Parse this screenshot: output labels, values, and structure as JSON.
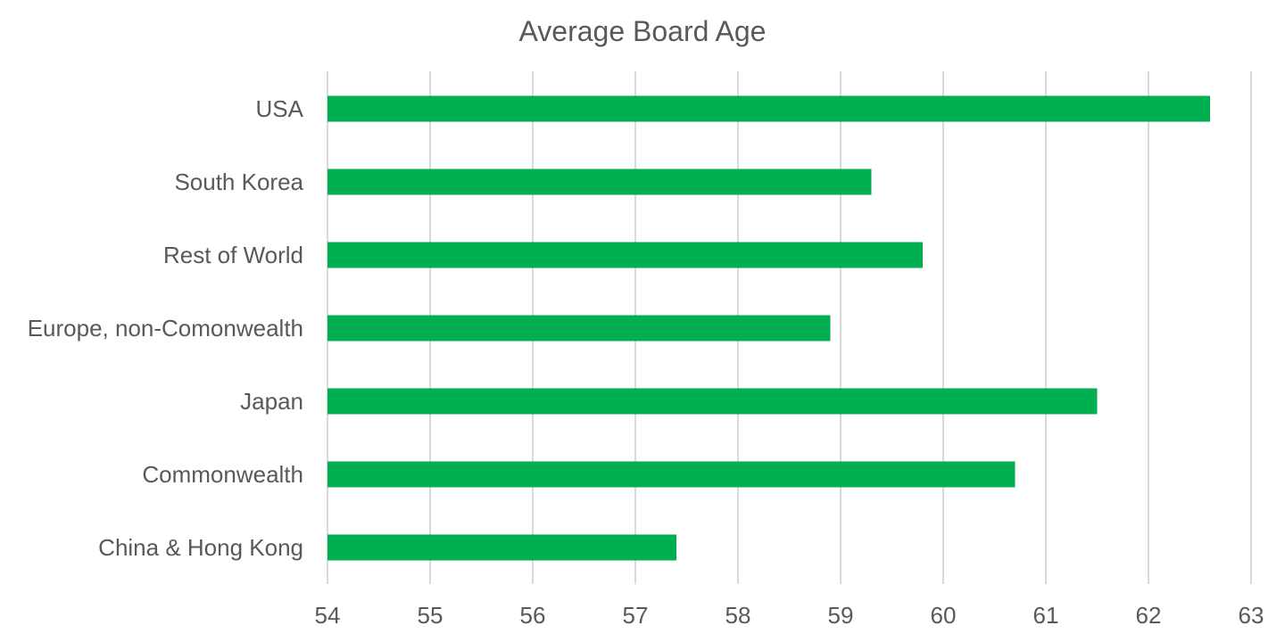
{
  "chart_data": {
    "type": "bar",
    "orientation": "horizontal",
    "title": "Average Board Age",
    "xlabel": "",
    "ylabel": "",
    "categories": [
      "USA",
      "South Korea",
      "Rest of World",
      "Europe, non-Comonwealth",
      "Japan",
      "Commonwealth",
      "China & Hong Kong"
    ],
    "values": [
      62.6,
      59.3,
      59.8,
      58.9,
      61.5,
      60.7,
      57.4
    ],
    "xlim": [
      54,
      63
    ],
    "xticks": [
      54,
      55,
      56,
      57,
      58,
      59,
      60,
      61,
      62,
      63
    ],
    "grid": "vertical",
    "legend": "none",
    "bar_color": "#00b050",
    "gridline_color": "#d9d9d9",
    "text_color": "#595959"
  }
}
